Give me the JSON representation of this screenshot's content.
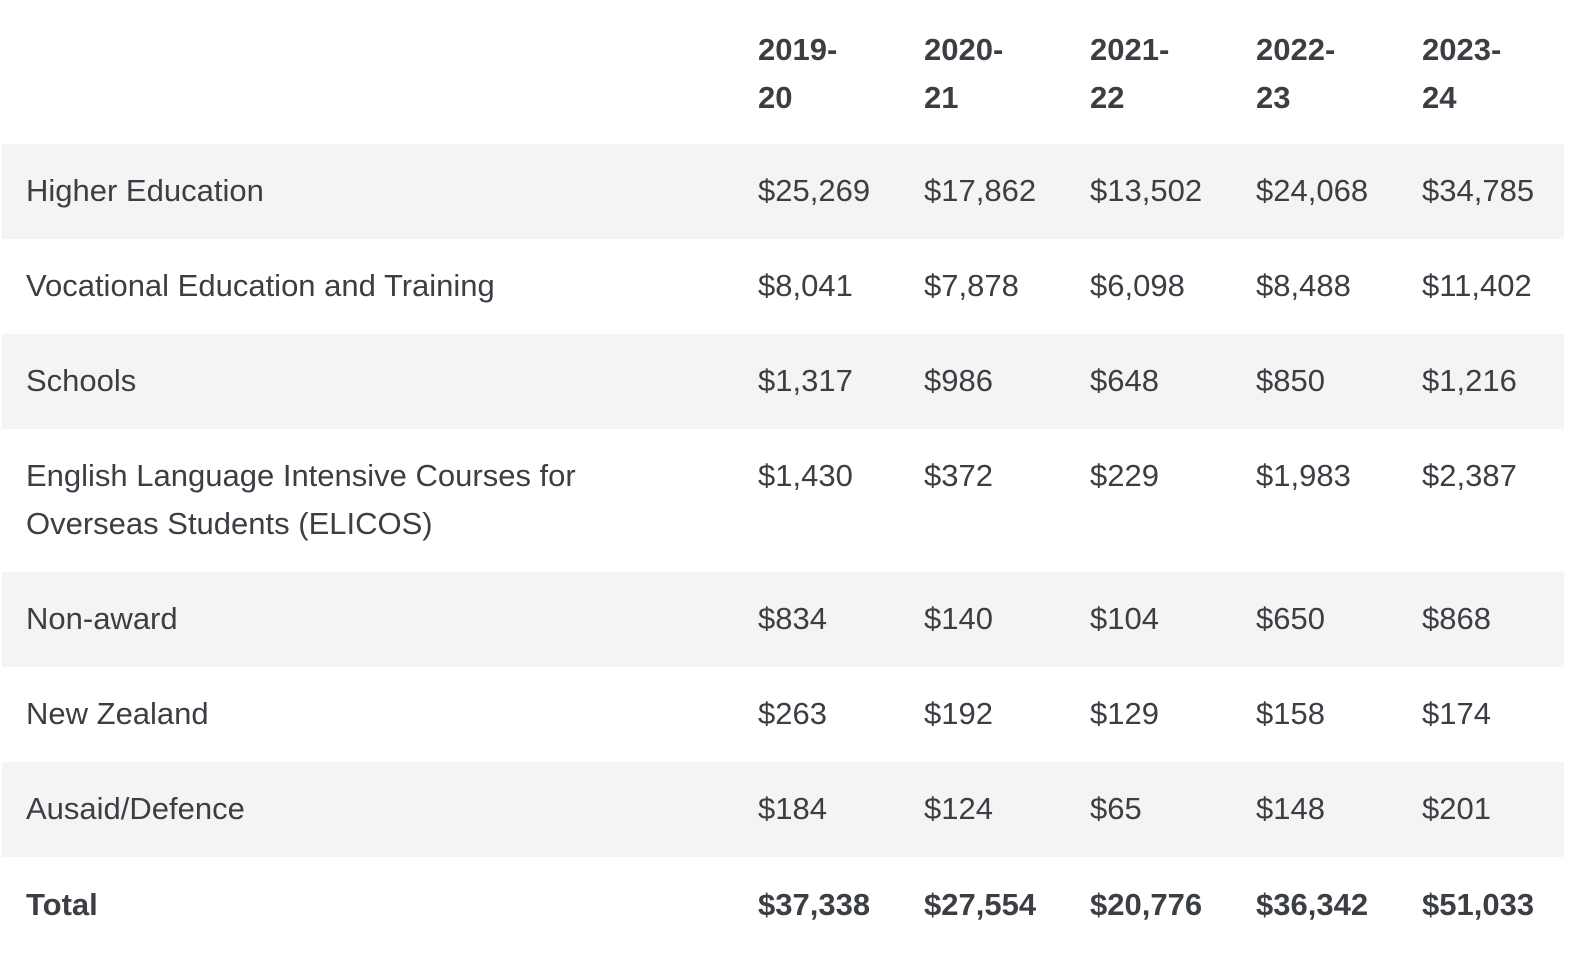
{
  "table": {
    "headers": [
      {
        "line1": "2019-",
        "line2": "20"
      },
      {
        "line1": "2020-",
        "line2": "21"
      },
      {
        "line1": "2021-",
        "line2": "22"
      },
      {
        "line1": "2022-",
        "line2": "23"
      },
      {
        "line1": "2023-",
        "line2": "24"
      }
    ],
    "rows": [
      {
        "label": "Higher Education",
        "values": [
          "$25,269",
          "$17,862",
          "$13,502",
          "$24,068",
          "$34,785"
        ]
      },
      {
        "label": "Vocational Education and Training",
        "values": [
          "$8,041",
          "$7,878",
          "$6,098",
          "$8,488",
          "$11,402"
        ]
      },
      {
        "label": "Schools",
        "values": [
          "$1,317",
          "$986",
          "$648",
          "$850",
          "$1,216"
        ]
      },
      {
        "label": "English Language Intensive Courses for Overseas Students (ELICOS)",
        "values": [
          "$1,430",
          "$372",
          "$229",
          "$1,983",
          "$2,387"
        ]
      },
      {
        "label": "Non-award",
        "values": [
          "$834",
          "$140",
          "$104",
          "$650",
          "$868"
        ]
      },
      {
        "label": "New Zealand",
        "values": [
          "$263",
          "$192",
          "$129",
          "$158",
          "$174"
        ]
      },
      {
        "label": "Ausaid/Defence",
        "values": [
          "$184",
          "$124",
          "$65",
          "$148",
          "$201"
        ]
      }
    ],
    "total": {
      "label": "Total",
      "values": [
        "$37,338",
        "$27,554",
        "$20,776",
        "$36,342",
        "$51,033"
      ]
    }
  }
}
